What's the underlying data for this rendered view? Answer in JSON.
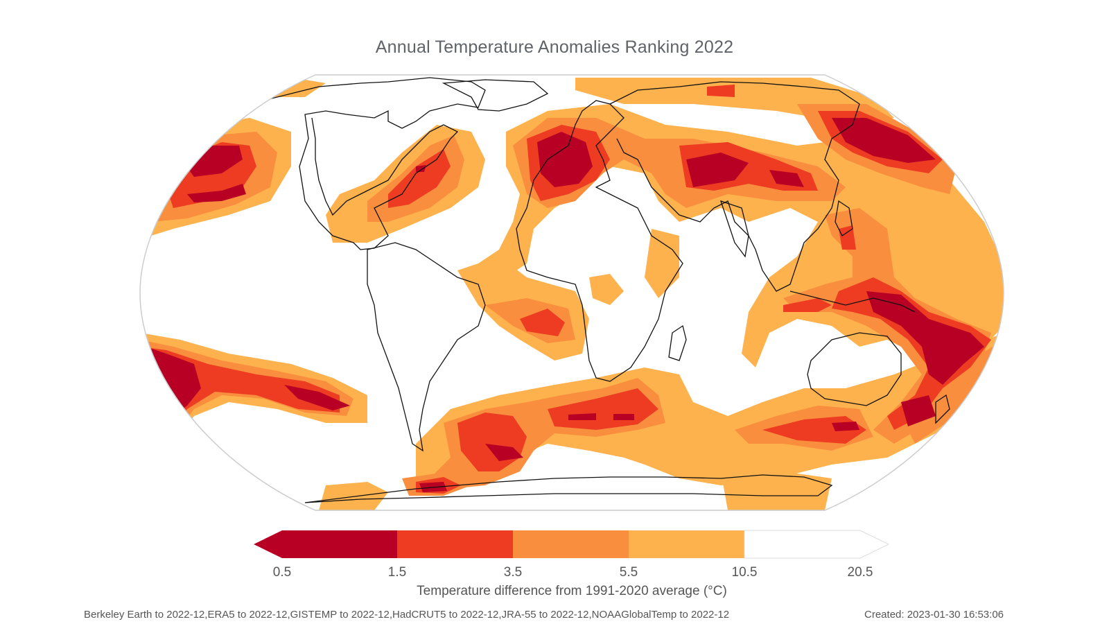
{
  "title": "Annual Temperature Anomalies Ranking 2022",
  "colorbar": {
    "label": "Temperature difference from 1991-2020 average (°C)",
    "ticks": [
      "0.5",
      "1.5",
      "3.5",
      "5.5",
      "10.5",
      "20.5"
    ],
    "colors": [
      "#b80025",
      "#ee3c22",
      "#f98e3e",
      "#fdb24d",
      "#ffffff"
    ]
  },
  "footer": {
    "sources": "Berkeley Earth to 2022-12,ERA5 to 2022-12,GISTEMP to 2022-12,HadCRUT5 to 2022-12,JRA-55 to 2022-12,NOAAGlobalTemp to 2022-12",
    "created": "Created: 2023-01-30 16:53:06"
  }
}
